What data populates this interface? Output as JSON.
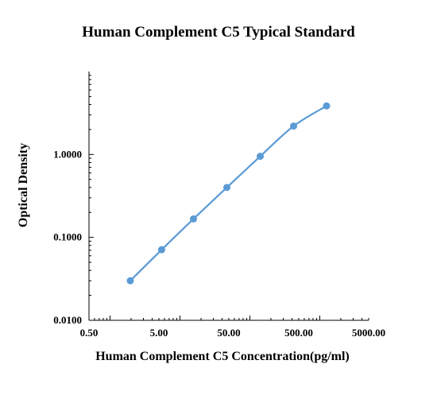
{
  "chart_data": {
    "type": "line",
    "title": "Human Complement C5 Typical Standard",
    "xlabel": "Human Complement C5 Concentration(pg/ml)",
    "ylabel": "Optical Density",
    "x_scale": "log",
    "y_scale": "log",
    "xlim": [
      0.5,
      5000
    ],
    "ylim": [
      0.01,
      10
    ],
    "x_ticks": [
      0.5,
      5,
      50,
      500,
      5000
    ],
    "x_tick_labels": [
      "0.50",
      "5.00",
      "50.00",
      "500.00",
      "5000.00"
    ],
    "y_ticks": [
      0.01,
      0.1,
      1
    ],
    "y_tick_labels": [
      "0.0100",
      "0.1000",
      "1.0000"
    ],
    "grid": false,
    "series_color": "#5B9BD5",
    "series": [
      {
        "x": [
          1.95,
          5.47,
          15.6,
          46.9,
          140.6,
          421.9,
          1250
        ],
        "y": [
          0.03,
          0.071,
          0.167,
          0.4,
          0.95,
          2.2,
          3.85
        ]
      }
    ]
  }
}
